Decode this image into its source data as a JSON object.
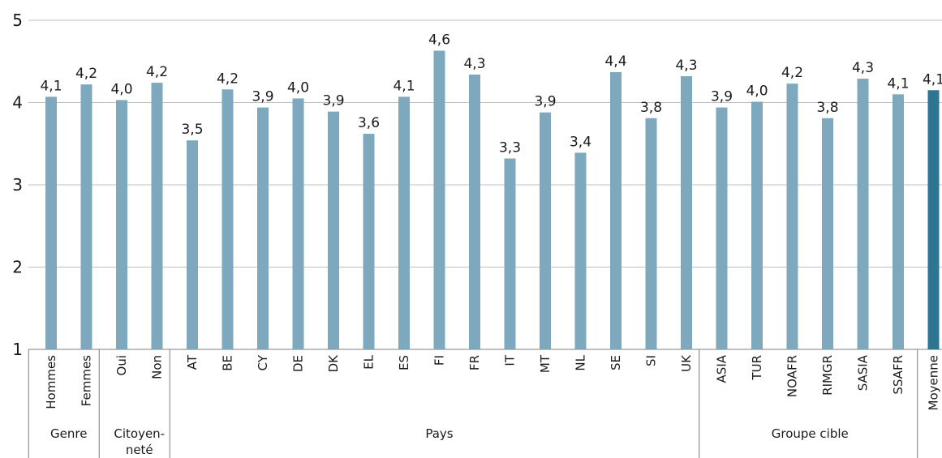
{
  "chart_data": {
    "type": "bar",
    "ylim": [
      1,
      5
    ],
    "yticks": [
      "1",
      "2",
      "3",
      "4",
      "5"
    ],
    "grid": true,
    "colors": {
      "bar": "#7da8bd",
      "highlight": "#2e7591",
      "grid": "#bfbfbf",
      "axis": "#7f7f7f"
    },
    "categories": [
      "Hommes",
      "Femmes",
      "Oui",
      "Non",
      "AT",
      "BE",
      "CY",
      "DE",
      "DK",
      "EL",
      "ES",
      "FI",
      "FR",
      "IT",
      "MT",
      "NL",
      "SE",
      "SI",
      "UK",
      "ASIA",
      "TUR",
      "NOAFR",
      "RIMGR",
      "SASIA",
      "SSAFR",
      "Moyenne"
    ],
    "values": [
      4.07,
      4.22,
      4.03,
      4.24,
      3.54,
      4.16,
      3.94,
      4.05,
      3.89,
      3.62,
      4.07,
      4.63,
      4.34,
      3.32,
      3.88,
      3.39,
      4.37,
      3.81,
      4.32,
      3.94,
      4.01,
      4.23,
      3.81,
      4.29,
      4.1,
      4.15
    ],
    "labels": [
      "4,1",
      "4,2",
      "4,0",
      "4,2",
      "3,5",
      "4,2",
      "3,9",
      "4,0",
      "3,9",
      "3,6",
      "4,1",
      "4,6",
      "4,3",
      "3,3",
      "3,9",
      "3,4",
      "4,4",
      "3,8",
      "4,3",
      "3,9",
      "4,0",
      "4,2",
      "3,8",
      "4,3",
      "4,1",
      "4,1"
    ],
    "highlight_index": 25,
    "groups": [
      {
        "lines": [
          "Genre"
        ],
        "start": 0,
        "end": 1
      },
      {
        "lines": [
          "Citoyen-",
          "neté"
        ],
        "start": 2,
        "end": 3
      },
      {
        "lines": [
          "Pays"
        ],
        "start": 4,
        "end": 18
      },
      {
        "lines": [
          "Groupe cible"
        ],
        "start": 19,
        "end": 24
      }
    ]
  }
}
